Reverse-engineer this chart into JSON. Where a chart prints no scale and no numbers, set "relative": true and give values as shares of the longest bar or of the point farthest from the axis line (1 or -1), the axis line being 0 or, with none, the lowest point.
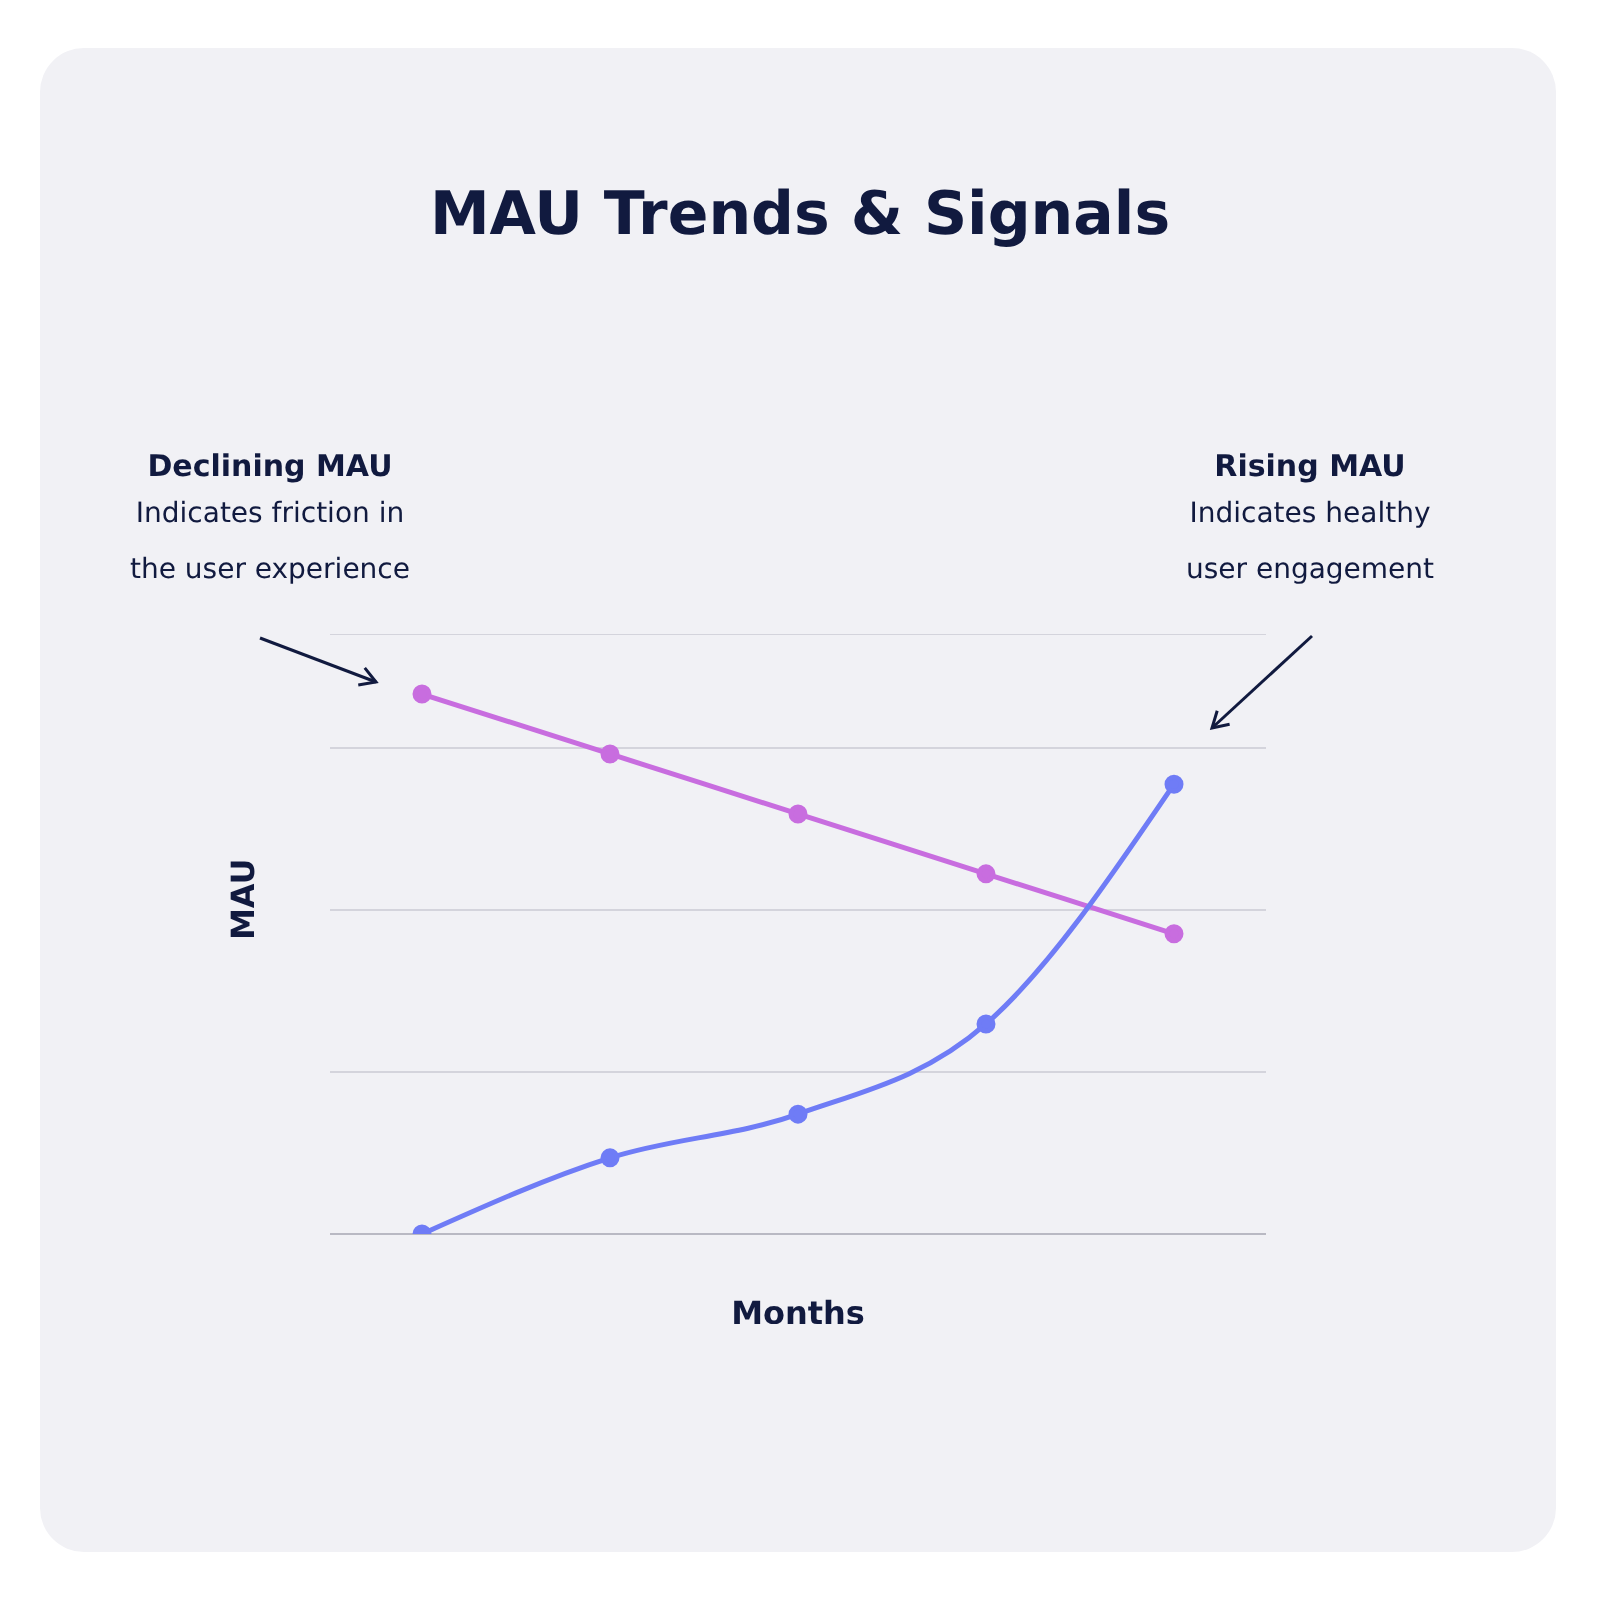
{
  "chart_data": {
    "type": "line",
    "title": "MAU Trends & Signals",
    "xlabel": "Months",
    "ylabel": "MAU",
    "relative": true,
    "grid": "y",
    "marker": "circle",
    "line_style": "solid",
    "categories": [
      null,
      null,
      null,
      null,
      null
    ],
    "series": [
      {
        "color": "#c86ddf",
        "values": [
          1,
          0.889,
          0.778,
          0.667,
          0.556
        ]
      },
      {
        "color": "#6f7cf6",
        "values": [
          0,
          0.141,
          0.222,
          0.389,
          0.833
        ]
      }
    ],
    "annotations": [
      "Declining MAU",
      "Indicates friction in the user experience",
      "Rising MAU",
      "Indicates healthy user engagement"
    ]
  }
}
